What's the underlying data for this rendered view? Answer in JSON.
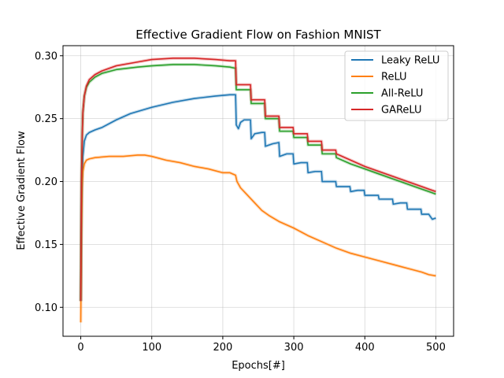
{
  "chart_data": {
    "type": "line",
    "title": "Effective Gradient Flow on Fashion MNIST",
    "xlabel": "Epochs[#]",
    "ylabel": "Effective Gradient Flow",
    "xlim": [
      -25,
      525
    ],
    "ylim": [
      0.077,
      0.308
    ],
    "xticks": [
      0,
      100,
      200,
      300,
      400,
      500
    ],
    "yticks": [
      0.1,
      0.15,
      0.2,
      0.25,
      0.3
    ],
    "xtick_labels": [
      "0",
      "100",
      "200",
      "300",
      "400",
      "500"
    ],
    "ytick_labels": [
      "0.10",
      "0.15",
      "0.20",
      "0.25",
      "0.30"
    ],
    "grid": true,
    "legend_position": "top-right",
    "series": [
      {
        "name": "Leaky ReLU",
        "color": "#1f77b4",
        "x": [
          0,
          1,
          2,
          3,
          5,
          8,
          12,
          20,
          30,
          50,
          70,
          100,
          130,
          160,
          190,
          210,
          218,
          219,
          222,
          225,
          230,
          239,
          240,
          245,
          255,
          259,
          260,
          270,
          279,
          280,
          290,
          299,
          300,
          310,
          319,
          320,
          330,
          339,
          340,
          350,
          359,
          360,
          370,
          379,
          380,
          390,
          399,
          400,
          410,
          419,
          420,
          430,
          439,
          440,
          450,
          459,
          460,
          470,
          479,
          480,
          490,
          495,
          500
        ],
        "y": [
          0.105,
          0.18,
          0.205,
          0.22,
          0.232,
          0.237,
          0.239,
          0.241,
          0.243,
          0.249,
          0.254,
          0.259,
          0.263,
          0.266,
          0.268,
          0.269,
          0.269,
          0.245,
          0.242,
          0.247,
          0.249,
          0.249,
          0.234,
          0.238,
          0.239,
          0.239,
          0.228,
          0.23,
          0.231,
          0.22,
          0.222,
          0.222,
          0.214,
          0.215,
          0.215,
          0.207,
          0.208,
          0.208,
          0.2,
          0.2,
          0.2,
          0.196,
          0.196,
          0.196,
          0.192,
          0.193,
          0.193,
          0.189,
          0.189,
          0.189,
          0.186,
          0.186,
          0.186,
          0.182,
          0.183,
          0.183,
          0.178,
          0.178,
          0.178,
          0.174,
          0.174,
          0.17,
          0.171
        ]
      },
      {
        "name": "ReLU",
        "color": "#ff7f0e",
        "x": [
          0,
          1,
          2,
          3,
          5,
          8,
          12,
          20,
          40,
          60,
          80,
          90,
          100,
          120,
          140,
          160,
          180,
          200,
          210,
          218,
          220,
          225,
          235,
          245,
          255,
          265,
          280,
          300,
          320,
          340,
          360,
          380,
          400,
          420,
          440,
          460,
          480,
          490,
          500
        ],
        "y": [
          0.088,
          0.16,
          0.195,
          0.208,
          0.214,
          0.217,
          0.218,
          0.219,
          0.22,
          0.22,
          0.221,
          0.221,
          0.22,
          0.217,
          0.215,
          0.212,
          0.21,
          0.207,
          0.207,
          0.205,
          0.2,
          0.195,
          0.189,
          0.183,
          0.177,
          0.173,
          0.168,
          0.163,
          0.157,
          0.152,
          0.147,
          0.143,
          0.14,
          0.137,
          0.134,
          0.131,
          0.128,
          0.126,
          0.125
        ]
      },
      {
        "name": "All-ReLU",
        "color": "#2ca02c",
        "x": [
          0,
          1,
          2,
          3,
          5,
          8,
          12,
          20,
          30,
          50,
          80,
          100,
          130,
          160,
          190,
          210,
          218,
          219,
          225,
          230,
          239,
          240,
          250,
          259,
          260,
          270,
          279,
          280,
          290,
          299,
          300,
          310,
          319,
          320,
          330,
          339,
          340,
          350,
          359,
          360,
          380,
          400,
          420,
          440,
          460,
          480,
          490,
          500
        ],
        "y": [
          0.105,
          0.2,
          0.235,
          0.255,
          0.268,
          0.275,
          0.279,
          0.283,
          0.286,
          0.289,
          0.291,
          0.292,
          0.293,
          0.293,
          0.292,
          0.291,
          0.29,
          0.273,
          0.273,
          0.273,
          0.273,
          0.262,
          0.262,
          0.262,
          0.25,
          0.25,
          0.25,
          0.24,
          0.24,
          0.24,
          0.235,
          0.235,
          0.235,
          0.229,
          0.229,
          0.229,
          0.222,
          0.222,
          0.222,
          0.219,
          0.214,
          0.21,
          0.206,
          0.202,
          0.198,
          0.194,
          0.192,
          0.19
        ]
      },
      {
        "name": "GAReLU",
        "color": "#d62728",
        "x": [
          0,
          1,
          2,
          3,
          5,
          8,
          12,
          20,
          30,
          50,
          80,
          100,
          130,
          160,
          190,
          210,
          218,
          219,
          225,
          230,
          239,
          240,
          250,
          259,
          260,
          270,
          279,
          280,
          290,
          299,
          300,
          310,
          319,
          320,
          330,
          339,
          340,
          350,
          359,
          360,
          380,
          400,
          420,
          440,
          460,
          480,
          490,
          500
        ],
        "y": [
          0.105,
          0.2,
          0.235,
          0.255,
          0.268,
          0.276,
          0.281,
          0.285,
          0.288,
          0.292,
          0.295,
          0.297,
          0.298,
          0.298,
          0.297,
          0.296,
          0.296,
          0.277,
          0.277,
          0.277,
          0.277,
          0.265,
          0.265,
          0.265,
          0.252,
          0.252,
          0.252,
          0.243,
          0.243,
          0.243,
          0.238,
          0.238,
          0.238,
          0.232,
          0.232,
          0.232,
          0.225,
          0.225,
          0.225,
          0.222,
          0.217,
          0.212,
          0.208,
          0.204,
          0.2,
          0.196,
          0.194,
          0.192
        ]
      }
    ]
  }
}
